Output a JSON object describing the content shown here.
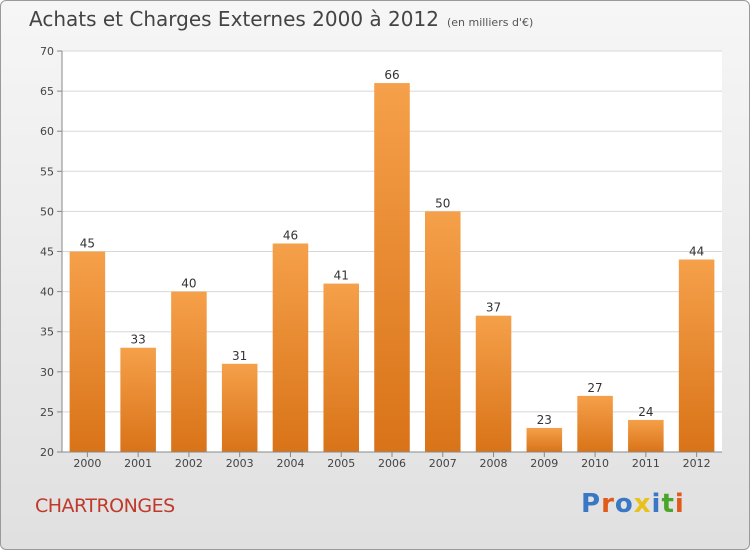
{
  "header": {
    "title": "Achats et Charges Externes 2000 à 2012",
    "subtitle": "(en milliers d'€)"
  },
  "footer": {
    "city": "CHARTRONGES",
    "logo_text": "Proxiti"
  },
  "colors": {
    "bar_top": "#f5a04a",
    "bar_bottom": "#d97318",
    "city": "#c0392b",
    "logo_letters": [
      "#3a78c6",
      "#e05a1a",
      "#3a78c6",
      "#e8c21a",
      "#3a78c6",
      "#4aa52a",
      "#e05a1a"
    ]
  },
  "chart_data": {
    "type": "bar",
    "title": "Achats et Charges Externes 2000 à 2012",
    "subtitle": "(en milliers d'€)",
    "xlabel": "",
    "ylabel": "",
    "categories": [
      "2000",
      "2001",
      "2002",
      "2003",
      "2004",
      "2005",
      "2006",
      "2007",
      "2008",
      "2009",
      "2010",
      "2011",
      "2012"
    ],
    "values": [
      45,
      33,
      40,
      31,
      46,
      41,
      66,
      50,
      37,
      23,
      27,
      24,
      44
    ],
    "ylim": [
      20,
      70
    ],
    "yticks": [
      20,
      25,
      30,
      35,
      40,
      45,
      50,
      55,
      60,
      65,
      70
    ],
    "grid": true,
    "data_labels": true
  }
}
